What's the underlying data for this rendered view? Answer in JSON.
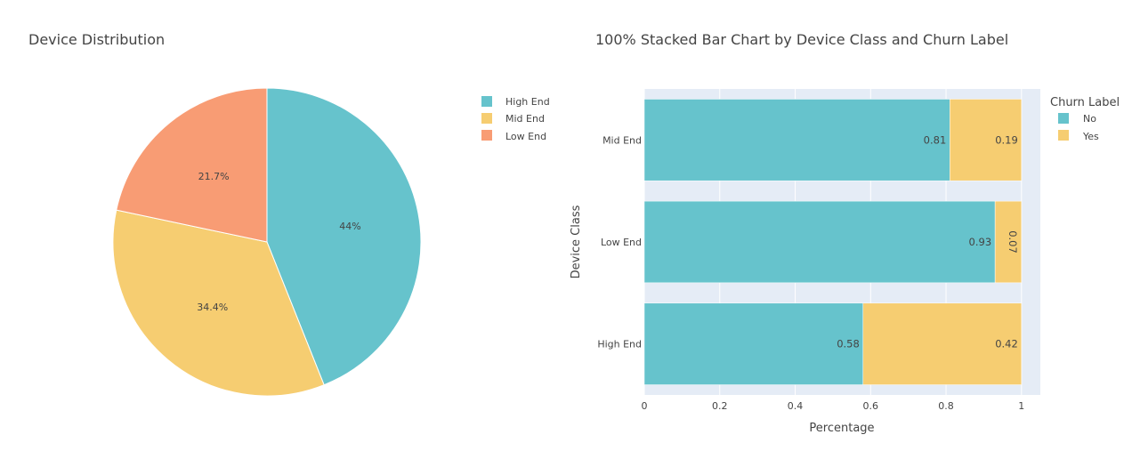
{
  "colors": {
    "high_end": "#66c3cc",
    "mid_end": "#f6cd71",
    "low_end": "#f89c74",
    "plot_bg": "#e5ecf6",
    "grid": "#ffffff"
  },
  "chart_data": [
    {
      "type": "pie",
      "title": "Device Distribution",
      "labels": [
        "High End",
        "Mid End",
        "Low End"
      ],
      "values": [
        44.0,
        34.4,
        21.7
      ],
      "text": [
        "44%",
        "34.4%",
        "21.7%"
      ],
      "legend_position": "top-right"
    },
    {
      "type": "bar",
      "orientation": "horizontal",
      "stacked": "100%",
      "title": "100% Stacked Bar Chart by Device Class and Churn Label",
      "categories": [
        "Mid End",
        "Low End",
        "High End"
      ],
      "series": [
        {
          "name": "No",
          "values": [
            0.81,
            0.93,
            0.58
          ],
          "text": [
            "0.81",
            "0.93",
            "0.58"
          ]
        },
        {
          "name": "Yes",
          "values": [
            0.19,
            0.07,
            0.42
          ],
          "text": [
            "0.19",
            "0.07",
            "0.42"
          ]
        }
      ],
      "xlabel": "Percentage",
      "ylabel": "Device Class",
      "xlim": [
        0,
        1.05
      ],
      "xticks": [
        0,
        0.2,
        0.4,
        0.6,
        0.8,
        1
      ],
      "xtick_labels": [
        "0",
        "0.2",
        "0.4",
        "0.6",
        "0.8",
        "1"
      ],
      "legend_title": "Churn Label",
      "legend_position": "top-right",
      "grid": true
    }
  ]
}
